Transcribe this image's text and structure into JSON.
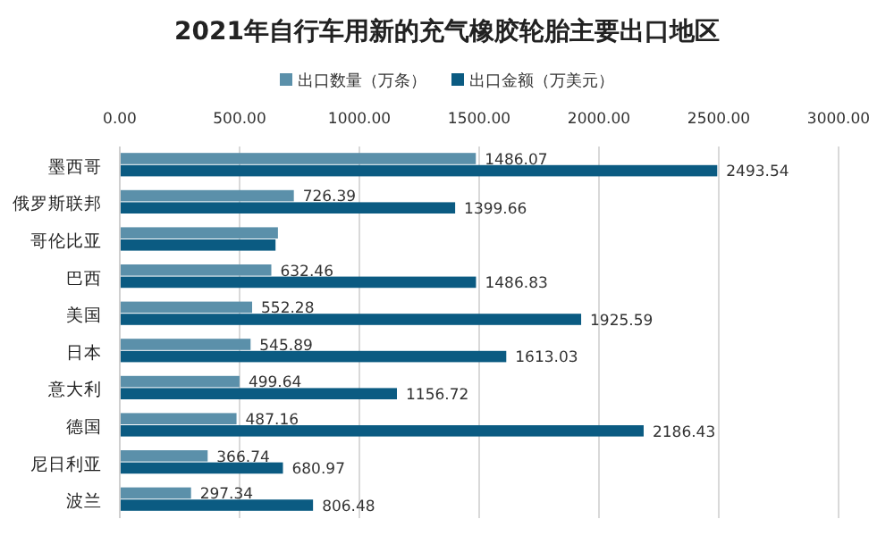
{
  "chart_data": {
    "type": "bar",
    "orientation": "horizontal",
    "title": "2021年自行车用新的充气橡胶轮胎主要出口地区",
    "categories": [
      "墨西哥",
      "俄罗斯联邦",
      "哥伦比亚",
      "巴西",
      "美国",
      "日本",
      "意大利",
      "德国",
      "尼日利亚",
      "波兰"
    ],
    "series": [
      {
        "name": "出口数量（万条）",
        "color": "#5b90aa",
        "values": [
          1486.07,
          726.39,
          660,
          632.46,
          552.28,
          545.89,
          499.64,
          487.16,
          366.74,
          297.34
        ],
        "value_labels": [
          "1486.07",
          "726.39",
          null,
          "632.46",
          "552.28",
          "545.89",
          "499.64",
          "487.16",
          "366.74",
          "297.34"
        ]
      },
      {
        "name": "出口金额（万美元）",
        "color": "#0b5b82",
        "values": [
          2493.54,
          1399.66,
          650,
          1486.83,
          1925.59,
          1613.03,
          1156.72,
          2186.43,
          680.97,
          806.48
        ],
        "value_labels": [
          "2493.54",
          "1399.66",
          null,
          "1486.83",
          "1925.59",
          "1613.03",
          "1156.72",
          "2186.43",
          "680.97",
          "806.48"
        ]
      }
    ],
    "xlim": [
      0,
      3000
    ],
    "xticks": [
      {
        "value": 0,
        "label": "0.00"
      },
      {
        "value": 500,
        "label": "500.00"
      },
      {
        "value": 1000,
        "label": "1000.00"
      },
      {
        "value": 1500,
        "label": "1500.00"
      },
      {
        "value": 2000,
        "label": "2000.00"
      },
      {
        "value": 2500,
        "label": "2500.00"
      },
      {
        "value": 3000,
        "label": "3000.00"
      }
    ],
    "grid": "x",
    "legend": "top"
  }
}
